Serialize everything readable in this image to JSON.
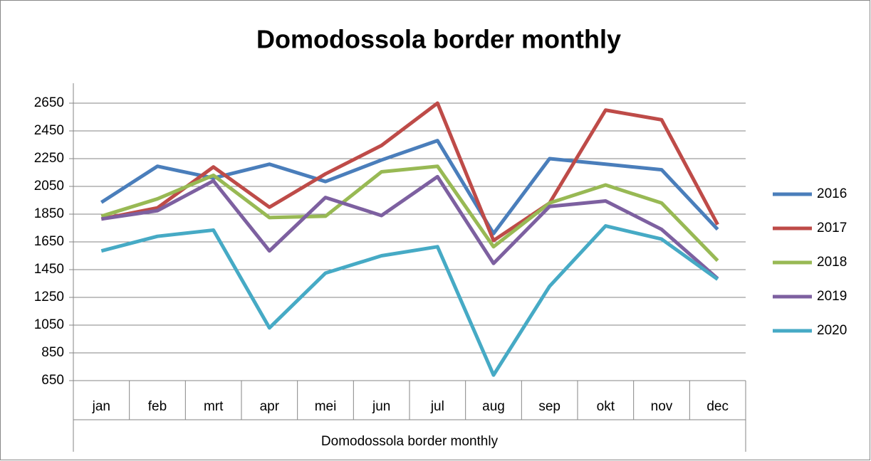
{
  "chart_data": {
    "type": "line",
    "title": "Domodossola border monthly",
    "x_label": "Domodossola border monthly",
    "categories": [
      "jan",
      "feb",
      "mrt",
      "apr",
      "mei",
      "jun",
      "jul",
      "aug",
      "sep",
      "okt",
      "nov",
      "dec"
    ],
    "series": [
      {
        "name": "2016",
        "color": "#4a7ebb",
        "values": [
          1935,
          2195,
          2110,
          2210,
          2085,
          2240,
          2380,
          1710,
          2250,
          2210,
          2170,
          1740
        ]
      },
      {
        "name": "2017",
        "color": "#be4b48",
        "values": [
          1815,
          1895,
          2190,
          1900,
          2140,
          2345,
          2650,
          1660,
          1930,
          2600,
          2530,
          1775
        ]
      },
      {
        "name": "2018",
        "color": "#98b954",
        "values": [
          1835,
          1960,
          2130,
          1825,
          1835,
          2155,
          2195,
          1615,
          1930,
          2060,
          1930,
          1515
        ]
      },
      {
        "name": "2019",
        "color": "#7d60a0",
        "values": [
          1815,
          1875,
          2090,
          1585,
          1970,
          1840,
          2120,
          1495,
          1905,
          1945,
          1740,
          1385
        ]
      },
      {
        "name": "2020",
        "color": "#46aac5",
        "values": [
          1585,
          1690,
          1735,
          1030,
          1425,
          1550,
          1615,
          690,
          1330,
          1765,
          1670,
          1380
        ]
      }
    ],
    "ylim": [
      650,
      2650
    ],
    "yticks": [
      650,
      850,
      1050,
      1250,
      1450,
      1650,
      1850,
      2050,
      2250,
      2450,
      2650
    ],
    "grid": true,
    "legend": "right"
  }
}
